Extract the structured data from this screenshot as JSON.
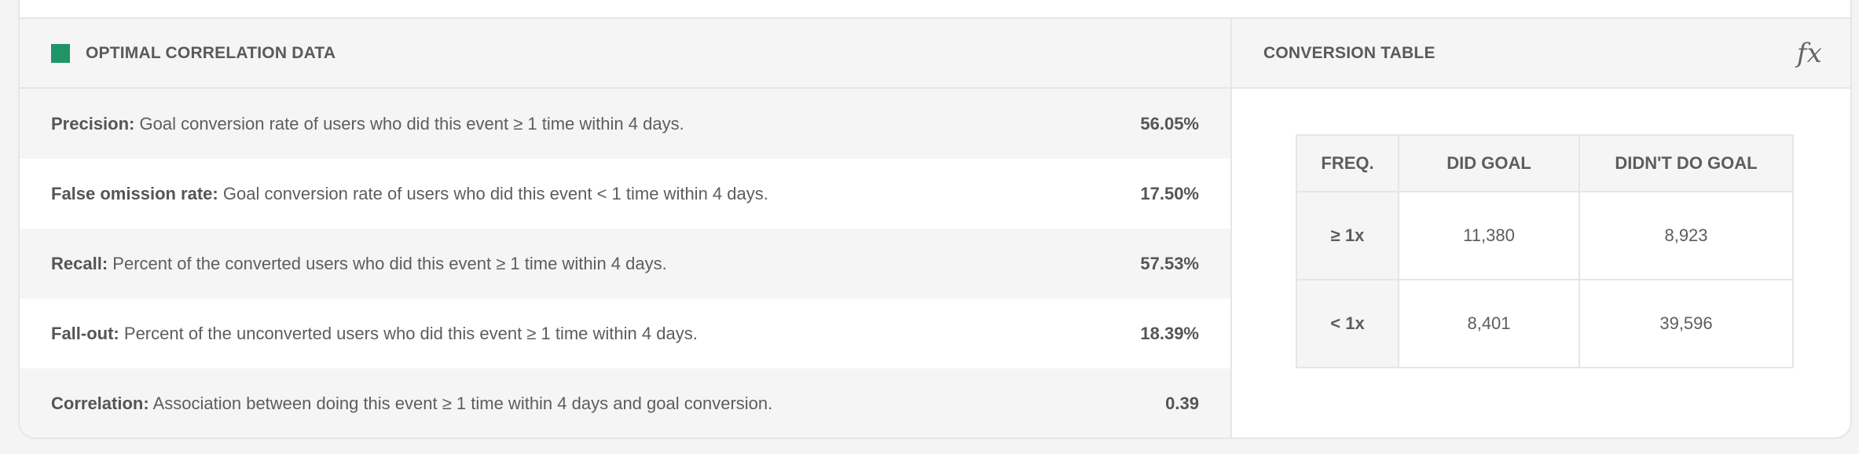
{
  "correlation": {
    "title": "OPTIMAL CORRELATION DATA",
    "accent_color": "#1f9467",
    "rows": [
      {
        "label": "Precision:",
        "description": "Goal conversion rate of users who did this event ≥ 1 time within 4 days.",
        "value": "56.05%"
      },
      {
        "label": "False omission rate:",
        "description": "Goal conversion rate of users who did this event < 1 time within 4 days.",
        "value": "17.50%"
      },
      {
        "label": "Recall:",
        "description": "Percent of the converted users who did this event ≥ 1 time within 4 days.",
        "value": "57.53%"
      },
      {
        "label": "Fall-out:",
        "description": "Percent of the unconverted users who did this event ≥ 1 time within 4 days.",
        "value": "18.39%"
      },
      {
        "label": "Correlation:",
        "description": "Association between doing this event ≥ 1 time within 4 days and goal conversion.",
        "value": "0.39"
      }
    ]
  },
  "conversion": {
    "title": "CONVERSION TABLE",
    "formula_icon": "fx",
    "headers": [
      "FREQ.",
      "DID GOAL",
      "DIDN'T DO GOAL"
    ],
    "rows": [
      [
        "≥ 1x",
        "11,380",
        "8,923"
      ],
      [
        "< 1x",
        "8,401",
        "39,596"
      ]
    ]
  }
}
